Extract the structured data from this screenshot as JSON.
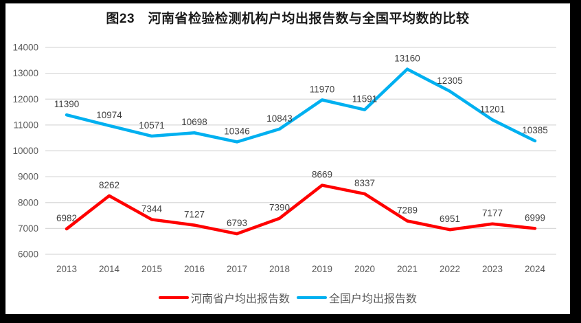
{
  "chart_data": {
    "type": "line",
    "title": "图23　河南省检验检测机构户均出报告数与全国平均数的比较",
    "categories": [
      "2013",
      "2014",
      "2015",
      "2016",
      "2017",
      "2018",
      "2019",
      "2020",
      "2021",
      "2022",
      "2023",
      "2024"
    ],
    "series": [
      {
        "name": "河南省户均出报告数",
        "color": "#FF0000",
        "values": [
          6982,
          8262,
          7344,
          7127,
          6793,
          7390,
          8669,
          8337,
          7289,
          6951,
          7177,
          6999
        ]
      },
      {
        "name": "全国户均出报告数",
        "color": "#00B0F0",
        "values": [
          11390,
          10974,
          10571,
          10698,
          10346,
          10843,
          11970,
          11591,
          13160,
          12305,
          11201,
          10385
        ]
      }
    ],
    "xlabel": "",
    "ylabel": "",
    "ylim": [
      6000,
      14000
    ],
    "ytick_step": 1000,
    "grid": "horizontal",
    "legend_position": "bottom",
    "colors": {
      "grid": "#D9D9D9",
      "axis_text": "#595959",
      "label_text": "#404040",
      "title_text": "#1a1a1a",
      "frame": "#000000"
    }
  }
}
